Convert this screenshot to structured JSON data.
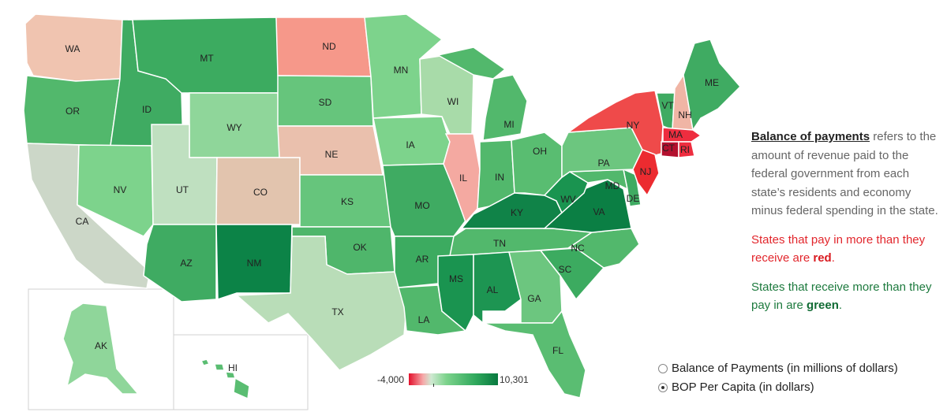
{
  "states": {
    "WA": {
      "label": "WA",
      "color": "#f0c4b0"
    },
    "OR": {
      "label": "OR",
      "color": "#52b86c"
    },
    "CA": {
      "label": "CA",
      "color": "#ccd7c8"
    },
    "ID": {
      "label": "ID",
      "color": "#3fab62"
    },
    "NV": {
      "label": "NV",
      "color": "#7dd38c"
    },
    "MT": {
      "label": "MT",
      "color": "#3cab60"
    },
    "WY": {
      "label": "WY",
      "color": "#8fd69a"
    },
    "UT": {
      "label": "UT",
      "color": "#bfe0c0"
    },
    "AZ": {
      "label": "AZ",
      "color": "#3fab62"
    },
    "CO": {
      "label": "CO",
      "color": "#e2c4ae"
    },
    "NM": {
      "label": "NM",
      "color": "#0c8347"
    },
    "ND": {
      "label": "ND",
      "color": "#f6988a"
    },
    "SD": {
      "label": "SD",
      "color": "#66c57c"
    },
    "NE": {
      "label": "NE",
      "color": "#eac0ad"
    },
    "KS": {
      "label": "KS",
      "color": "#66c57c"
    },
    "OK": {
      "label": "OK",
      "color": "#4fb66b"
    },
    "TX": {
      "label": "TX",
      "color": "#b9ddb8"
    },
    "MN": {
      "label": "MN",
      "color": "#7dd38c"
    },
    "IA": {
      "label": "IA",
      "color": "#7dd38c"
    },
    "MO": {
      "label": "MO",
      "color": "#3fab62"
    },
    "AR": {
      "label": "AR",
      "color": "#3cab60"
    },
    "LA": {
      "label": "LA",
      "color": "#52b86c"
    },
    "WI": {
      "label": "WI",
      "color": "#a8dba9"
    },
    "IL": {
      "label": "IL",
      "color": "#f4a9a1"
    },
    "MI": {
      "label": "MI",
      "color": "#52b86c"
    },
    "IN": {
      "label": "IN",
      "color": "#52b86c"
    },
    "OH": {
      "label": "OH",
      "color": "#59bd71"
    },
    "KY": {
      "label": "KY",
      "color": "#108348"
    },
    "TN": {
      "label": "TN",
      "color": "#52b86c"
    },
    "MS": {
      "label": "MS",
      "color": "#1a9450"
    },
    "AL": {
      "label": "AL",
      "color": "#1d9552"
    },
    "GA": {
      "label": "GA",
      "color": "#6cc67f"
    },
    "FL": {
      "label": "FL",
      "color": "#5abd72"
    },
    "SC": {
      "label": "SC",
      "color": "#3cab60"
    },
    "NC": {
      "label": "NC",
      "color": "#52b86c"
    },
    "VA": {
      "label": "VA",
      "color": "#0b7f44"
    },
    "WV": {
      "label": "WV",
      "color": "#1a9450"
    },
    "PA": {
      "label": "PA",
      "color": "#6cc67f"
    },
    "NY": {
      "label": "NY",
      "color": "#ef4a4a"
    },
    "VT": {
      "label": "VT",
      "color": "#3fab62"
    },
    "NH": {
      "label": "NH",
      "color": "#f0b5a5"
    },
    "ME": {
      "label": "ME",
      "color": "#3fab62"
    },
    "MA": {
      "label": "MA",
      "color": "#ee2d3f"
    },
    "CT": {
      "label": "CT",
      "color": "#b3102e"
    },
    "RI": {
      "label": "RI",
      "color": "#ee2d3f"
    },
    "NJ": {
      "label": "NJ",
      "color": "#ec2b30"
    },
    "DE": {
      "label": "DE",
      "color": "#3fab62"
    },
    "MD": {
      "label": "MD",
      "color": "#52b86c"
    },
    "AK": {
      "label": "AK",
      "color": "#8fd69a"
    },
    "HI": {
      "label": "HI",
      "color": "#5abd72"
    }
  },
  "legend": {
    "term": "Balance of payments",
    "definition": " refers to the amount of revenue paid to the federal  government from each state’s residents and economy minus federal spending in the state.",
    "red_text": "States that pay in more than they receive are ",
    "red_word": "red",
    "green_text": "States that receive more than they pay in are ",
    "green_word": "green",
    "period": "."
  },
  "color_scale": {
    "min_label": "-4,000",
    "max_label": "10,301",
    "low_color": "#e3102c",
    "high_color": "#08793f"
  },
  "measure_options": [
    {
      "label": "Balance of Payments (in millions of dollars)",
      "selected": false
    },
    {
      "label": "BOP Per Capita (in dollars)",
      "selected": true
    }
  ]
}
